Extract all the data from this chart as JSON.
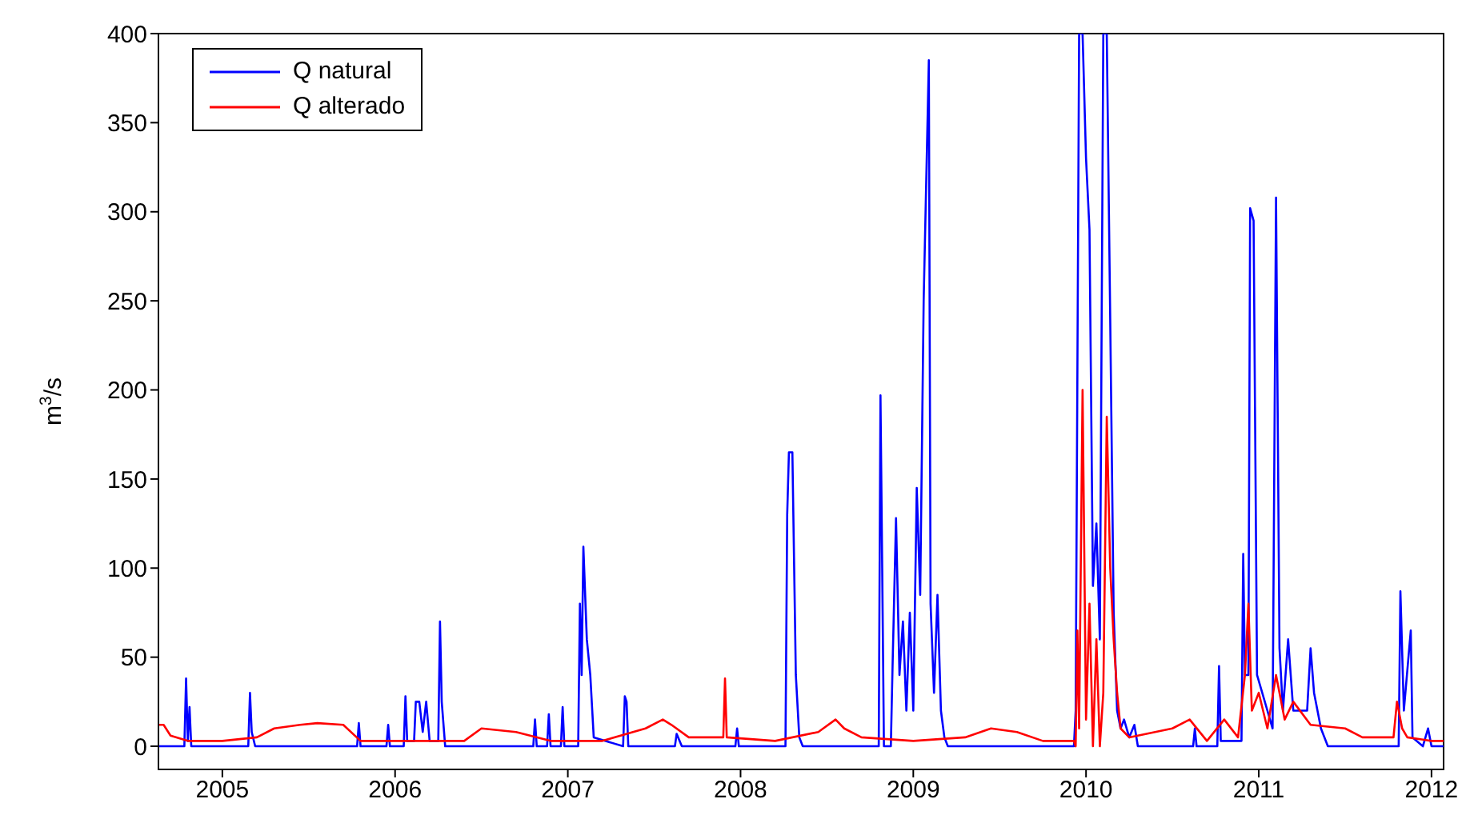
{
  "chart_data": {
    "type": "line",
    "ylabel": "m$^{3}$/s",
    "xlim": [
      2004.63,
      2012.07
    ],
    "xticks": [
      2005,
      2006,
      2007,
      2008,
      2009,
      2010,
      2011,
      2012
    ],
    "ylim": [
      -13,
      400
    ],
    "yticks": [
      0,
      50,
      100,
      150,
      200,
      250,
      300,
      350,
      400
    ],
    "grid": false,
    "legend": "top left",
    "marker": "none",
    "line_style": "solid",
    "series": [
      {
        "name": "Q natural",
        "color": "#0000ff",
        "x": [
          2004.63,
          2004.78,
          2004.79,
          2004.8,
          2004.81,
          2004.82,
          2005.15,
          2005.16,
          2005.17,
          2005.19,
          2005.78,
          2005.79,
          2005.8,
          2005.95,
          2005.96,
          2005.97,
          2006.05,
          2006.06,
          2006.07,
          2006.11,
          2006.12,
          2006.14,
          2006.16,
          2006.18,
          2006.2,
          2006.25,
          2006.26,
          2006.27,
          2006.29,
          2006.8,
          2006.81,
          2006.82,
          2006.88,
          2006.89,
          2006.9,
          2006.96,
          2006.97,
          2006.98,
          2007.06,
          2007.07,
          2007.08,
          2007.09,
          2007.11,
          2007.13,
          2007.15,
          2007.32,
          2007.33,
          2007.34,
          2007.35,
          2007.62,
          2007.63,
          2007.66,
          2007.97,
          2007.98,
          2007.99,
          2008.26,
          2008.27,
          2008.28,
          2008.3,
          2008.32,
          2008.34,
          2008.36,
          2008.8,
          2008.81,
          2008.82,
          2008.83,
          2008.87,
          2008.88,
          2008.9,
          2008.92,
          2008.94,
          2008.96,
          2008.98,
          2009.0,
          2009.02,
          2009.04,
          2009.06,
          2009.09,
          2009.1,
          2009.12,
          2009.14,
          2009.16,
          2009.18,
          2009.2,
          2009.93,
          2009.94,
          2009.96,
          2009.98,
          2010.0,
          2010.02,
          2010.04,
          2010.06,
          2010.08,
          2010.1,
          2010.12,
          2010.14,
          2010.16,
          2010.18,
          2010.2,
          2010.22,
          2010.25,
          2010.28,
          2010.3,
          2010.62,
          2010.63,
          2010.64,
          2010.76,
          2010.77,
          2010.78,
          2010.9,
          2010.91,
          2010.92,
          2010.94,
          2010.95,
          2010.97,
          2010.99,
          2011.02,
          2011.05,
          2011.08,
          2011.1,
          2011.12,
          2011.14,
          2011.17,
          2011.2,
          2011.28,
          2011.3,
          2011.32,
          2011.36,
          2011.4,
          2011.81,
          2011.82,
          2011.84,
          2011.88,
          2011.89,
          2011.95,
          2011.98,
          2012.0,
          2012.07
        ],
        "values": [
          0,
          0,
          38,
          3,
          22,
          0,
          0,
          30,
          8,
          0,
          0,
          13,
          0,
          0,
          12,
          0,
          0,
          28,
          3,
          3,
          25,
          25,
          8,
          25,
          3,
          3,
          70,
          25,
          0,
          0,
          15,
          0,
          0,
          18,
          0,
          0,
          22,
          0,
          0,
          80,
          40,
          112,
          60,
          40,
          5,
          0,
          28,
          25,
          0,
          0,
          7,
          0,
          0,
          10,
          0,
          0,
          130,
          165,
          165,
          40,
          5,
          0,
          0,
          197,
          100,
          0,
          0,
          45,
          128,
          40,
          70,
          20,
          75,
          20,
          145,
          85,
          250,
          385,
          80,
          30,
          85,
          20,
          5,
          0,
          0,
          20,
          400,
          400,
          330,
          290,
          90,
          125,
          60,
          400,
          400,
          240,
          75,
          20,
          10,
          15,
          5,
          12,
          0,
          0,
          10,
          0,
          0,
          45,
          3,
          3,
          108,
          40,
          40,
          302,
          295,
          40,
          30,
          20,
          10,
          308,
          55,
          20,
          60,
          20,
          20,
          55,
          30,
          10,
          0,
          0,
          87,
          20,
          65,
          5,
          0,
          10,
          0,
          0
        ]
      },
      {
        "name": "Q alterado",
        "color": "#ff0000",
        "x": [
          2004.63,
          2004.66,
          2004.7,
          2004.8,
          2005.0,
          2005.2,
          2005.3,
          2005.45,
          2005.55,
          2005.7,
          2005.8,
          2006.4,
          2006.5,
          2006.7,
          2006.9,
          2007.2,
          2007.45,
          2007.55,
          2007.6,
          2007.7,
          2007.9,
          2007.91,
          2007.92,
          2008.2,
          2008.45,
          2008.55,
          2008.6,
          2008.7,
          2009.0,
          2009.3,
          2009.45,
          2009.6,
          2009.75,
          2009.93,
          2009.94,
          2009.95,
          2009.96,
          2009.98,
          2010.0,
          2010.02,
          2010.04,
          2010.06,
          2010.08,
          2010.1,
          2010.12,
          2010.14,
          2010.16,
          2010.18,
          2010.2,
          2010.25,
          2010.5,
          2010.6,
          2010.7,
          2010.8,
          2010.88,
          2010.92,
          2010.94,
          2010.96,
          2011.0,
          2011.05,
          2011.1,
          2011.15,
          2011.2,
          2011.3,
          2011.5,
          2011.6,
          2011.78,
          2011.8,
          2011.83,
          2011.86,
          2012.0,
          2012.07
        ],
        "values": [
          12,
          12,
          6,
          3,
          3,
          5,
          10,
          12,
          13,
          12,
          3,
          3,
          10,
          8,
          3,
          3,
          10,
          15,
          12,
          5,
          5,
          38,
          5,
          3,
          8,
          15,
          10,
          5,
          3,
          5,
          10,
          8,
          3,
          3,
          0,
          65,
          10,
          200,
          15,
          80,
          0,
          60,
          0,
          30,
          185,
          100,
          60,
          30,
          10,
          5,
          10,
          15,
          3,
          15,
          5,
          40,
          80,
          20,
          30,
          10,
          40,
          15,
          25,
          12,
          10,
          5,
          5,
          25,
          10,
          5,
          3,
          3
        ]
      }
    ]
  }
}
